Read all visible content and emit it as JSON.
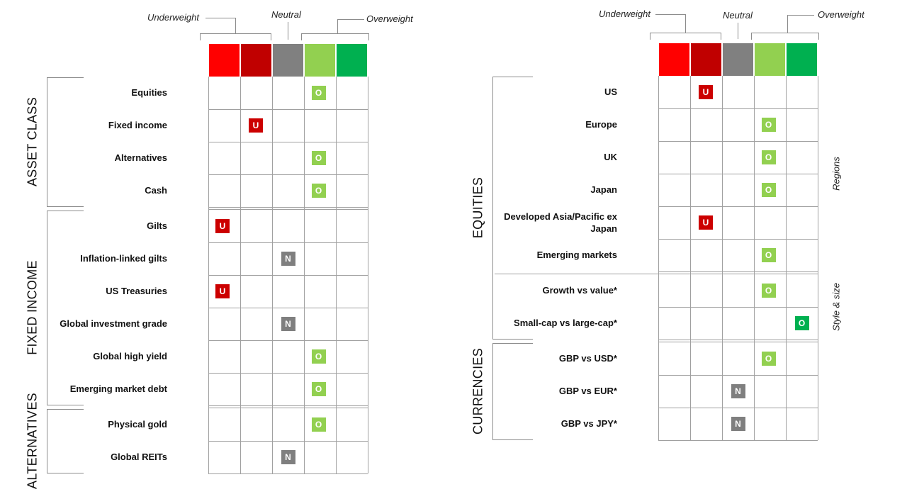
{
  "legend": {
    "underweight": "Underweight",
    "neutral": "Neutral",
    "overweight": "Overweight"
  },
  "scale_colors": [
    "#ff0000",
    "#c00000",
    "#808080",
    "#92d050",
    "#00b050"
  ],
  "left_panel": {
    "groups": [
      {
        "title": "ASSET CLASS",
        "rows": [
          {
            "label": "Equities",
            "position": 4,
            "stance": "O"
          },
          {
            "label": "Fixed income",
            "position": 2,
            "stance": "U"
          },
          {
            "label": "Alternatives",
            "position": 4,
            "stance": "O"
          },
          {
            "label": "Cash",
            "position": 4,
            "stance": "O"
          }
        ]
      },
      {
        "title": "FIXED INCOME",
        "rows": [
          {
            "label": "Gilts",
            "position": 1,
            "stance": "U"
          },
          {
            "label": "Inflation-linked gilts",
            "position": 3,
            "stance": "N"
          },
          {
            "label": "US Treasuries",
            "position": 1,
            "stance": "U"
          },
          {
            "label": "Global investment grade",
            "position": 3,
            "stance": "N"
          },
          {
            "label": "Global high yield",
            "position": 4,
            "stance": "O"
          },
          {
            "label": "Emerging market debt",
            "position": 4,
            "stance": "O"
          }
        ]
      },
      {
        "title": "ALTERNATIVES",
        "rows": [
          {
            "label": "Physical gold",
            "position": 4,
            "stance": "O"
          },
          {
            "label": "Global REITs",
            "position": 3,
            "stance": "N"
          }
        ]
      }
    ]
  },
  "right_panel": {
    "groups": [
      {
        "title": "EQUITIES",
        "subgroups": [
          {
            "label": "Regions",
            "rows": [
              {
                "label": "US",
                "position": 2,
                "stance": "U"
              },
              {
                "label": "Europe",
                "position": 4,
                "stance": "O"
              },
              {
                "label": "UK",
                "position": 4,
                "stance": "O"
              },
              {
                "label": "Japan",
                "position": 4,
                "stance": "O"
              },
              {
                "label": "Developed Asia/Pacific ex Japan",
                "position": 2,
                "stance": "U"
              },
              {
                "label": "Emerging markets",
                "position": 4,
                "stance": "O"
              }
            ]
          },
          {
            "label": "Style & size",
            "rows": [
              {
                "label": "Growth vs value*",
                "position": 4,
                "stance": "O"
              },
              {
                "label": "Small-cap vs large-cap*",
                "position": 5,
                "stance": "O"
              }
            ]
          }
        ]
      },
      {
        "title": "CURRENCIES",
        "subgroups": [
          {
            "label": "",
            "rows": [
              {
                "label": "GBP vs USD*",
                "position": 4,
                "stance": "O"
              },
              {
                "label": "GBP vs EUR*",
                "position": 3,
                "stance": "N"
              },
              {
                "label": "GBP vs JPY*",
                "position": 3,
                "stance": "N"
              }
            ]
          }
        ]
      }
    ]
  }
}
